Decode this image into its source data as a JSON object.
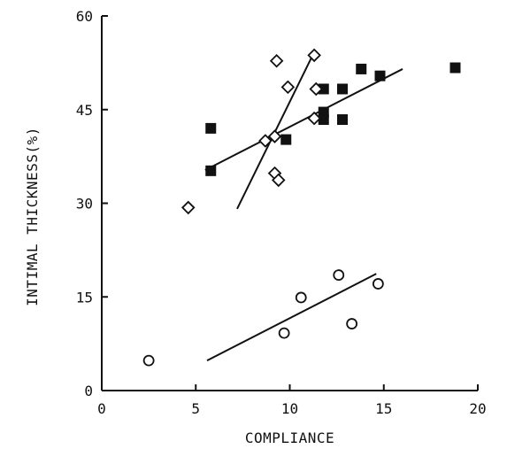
{
  "chart_data": {
    "type": "scatter",
    "xlabel": "COMPLIANCE",
    "ylabel": "INTIMAL THICKNESS(%)",
    "xlim": [
      0,
      20
    ],
    "ylim": [
      0,
      60
    ],
    "x_ticks": [
      0,
      5,
      10,
      15,
      20
    ],
    "y_ticks": [
      0,
      15,
      30,
      45,
      60
    ],
    "x_tick_labels": [
      "0",
      "5",
      "10",
      "15",
      "20"
    ],
    "y_tick_labels": [
      "0",
      "15",
      "30",
      "45",
      "60"
    ],
    "grid": false,
    "legend": false,
    "series": [
      {
        "marker": "square-filled",
        "points": [
          {
            "x": 5.8,
            "y": 42.0
          },
          {
            "x": 5.8,
            "y": 35.2
          },
          {
            "x": 9.8,
            "y": 40.2
          },
          {
            "x": 11.8,
            "y": 48.3
          },
          {
            "x": 11.8,
            "y": 44.6
          },
          {
            "x": 11.8,
            "y": 43.4
          },
          {
            "x": 12.8,
            "y": 48.3
          },
          {
            "x": 12.8,
            "y": 43.4
          },
          {
            "x": 13.8,
            "y": 51.5
          },
          {
            "x": 14.8,
            "y": 50.4
          },
          {
            "x": 18.8,
            "y": 51.7
          }
        ],
        "fit_line": {
          "x": [
            5.5,
            16.0
          ],
          "y": [
            35.3,
            51.5
          ]
        }
      },
      {
        "marker": "diamond-open",
        "points": [
          {
            "x": 4.6,
            "y": 29.3
          },
          {
            "x": 8.7,
            "y": 40.0
          },
          {
            "x": 9.2,
            "y": 40.7
          },
          {
            "x": 9.2,
            "y": 34.8
          },
          {
            "x": 9.4,
            "y": 33.7
          },
          {
            "x": 9.3,
            "y": 52.8
          },
          {
            "x": 9.9,
            "y": 48.6
          },
          {
            "x": 11.3,
            "y": 53.7
          },
          {
            "x": 11.4,
            "y": 48.3
          },
          {
            "x": 11.3,
            "y": 43.6
          }
        ],
        "fit_line": {
          "x": [
            7.2,
            11.2
          ],
          "y": [
            29.1,
            53.6
          ]
        }
      },
      {
        "marker": "circle-open",
        "points": [
          {
            "x": 2.5,
            "y": 4.8
          },
          {
            "x": 9.7,
            "y": 9.2
          },
          {
            "x": 10.6,
            "y": 14.9
          },
          {
            "x": 12.6,
            "y": 18.5
          },
          {
            "x": 13.3,
            "y": 10.7
          },
          {
            "x": 14.7,
            "y": 17.1
          }
        ],
        "fit_line": {
          "x": [
            5.6,
            14.6
          ],
          "y": [
            4.8,
            18.7
          ]
        }
      }
    ]
  }
}
